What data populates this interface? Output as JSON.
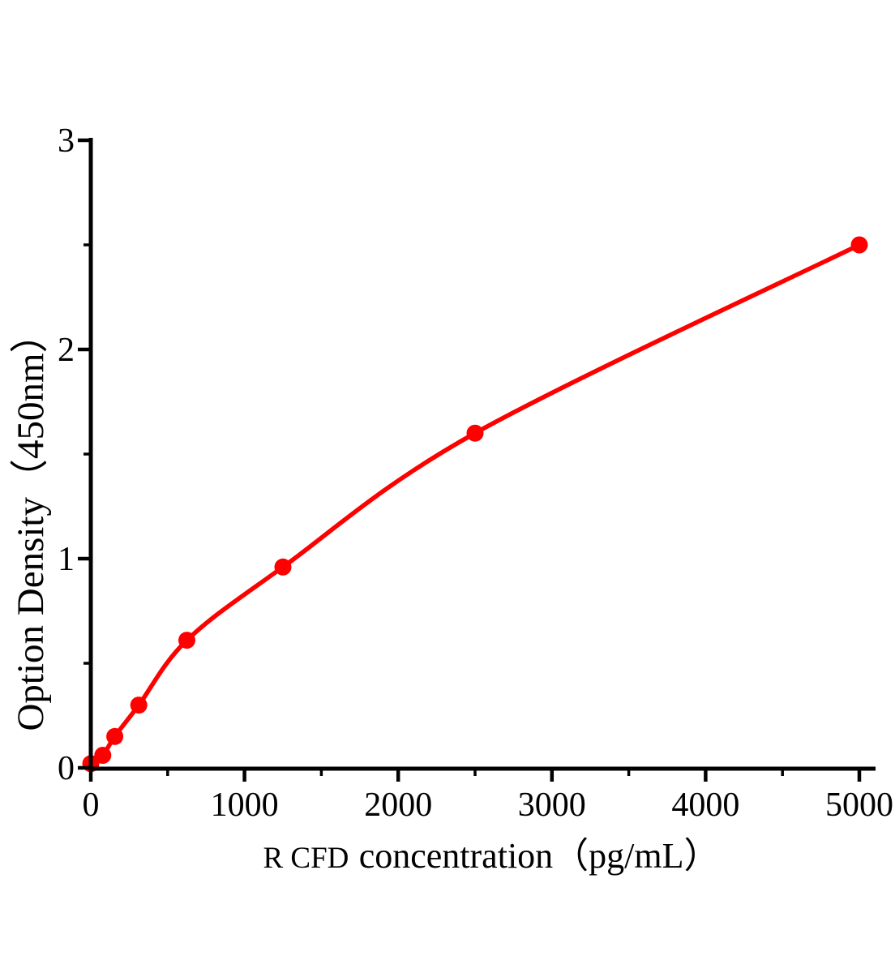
{
  "figure": {
    "background_color": "#ffffff",
    "axis_color": "#000000",
    "curve_color": "#ff0000",
    "marker_color": "#ff0000"
  },
  "chart_data": {
    "type": "scatter",
    "subtype": "elisa-standard-curve-with-smooth-fitted-line",
    "title": "",
    "xlabel": "R CFD concentration（pg/mL）",
    "xlabel_prefix": "R CFD",
    "xlabel_rest": "concentration（pg/mL）",
    "ylabel": "Option Density（450nm）",
    "xlim": [
      0,
      5000
    ],
    "ylim": [
      0,
      3
    ],
    "x_major_ticks": [
      0,
      1000,
      2000,
      3000,
      4000,
      5000
    ],
    "x_minor_ticks": [
      500,
      1500,
      2500,
      3500,
      4500
    ],
    "y_major_ticks": [
      0,
      1,
      2,
      3
    ],
    "y_minor_ticks": [
      0.5,
      1.5,
      2.5
    ],
    "grid": false,
    "legend": "none",
    "marker": "filled-circle",
    "line_style": "smooth",
    "points": [
      [
        0,
        0.02
      ],
      [
        78,
        0.06
      ],
      [
        156,
        0.15
      ],
      [
        312,
        0.3
      ],
      [
        625,
        0.61
      ],
      [
        1250,
        0.96
      ],
      [
        2500,
        1.6
      ],
      [
        5000,
        2.5
      ]
    ]
  }
}
